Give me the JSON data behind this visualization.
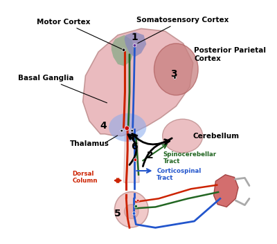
{
  "bg_color": "#ffffff",
  "labels": {
    "motor_cortex": "Motor Cortex",
    "somatosensory_cortex": "Somatosensory Cortex",
    "basal_ganglia": "Basal Ganglia",
    "posterior_parietal": "Posterior Parietal\nCortex",
    "cerebellum_label": "Cerebellum",
    "thalamus": "Thalamus",
    "spinocerebellar": "Spinocerebellar\nTract",
    "corticospinal": "Corticospinal\nTract",
    "dorsal_column": "Dorsal\nColumn",
    "num1": "1",
    "num2": "2",
    "num3": "3",
    "num4": "4",
    "num5": "5",
    "num6": "6"
  },
  "colors": {
    "brain_fill": "#e8b4b8",
    "red_path": "#cc2200",
    "blue_path": "#2255cc",
    "green_path": "#226622",
    "red_dot": "#cc0000",
    "blue_dot": "#2255cc",
    "green_dot": "#226622",
    "black_dot": "#111111",
    "purple_dot": "#663399",
    "label_color": "#000000",
    "spinocerebellar_color": "#226622",
    "corticospinal_color": "#2255cc",
    "dorsal_color": "#cc2200"
  }
}
